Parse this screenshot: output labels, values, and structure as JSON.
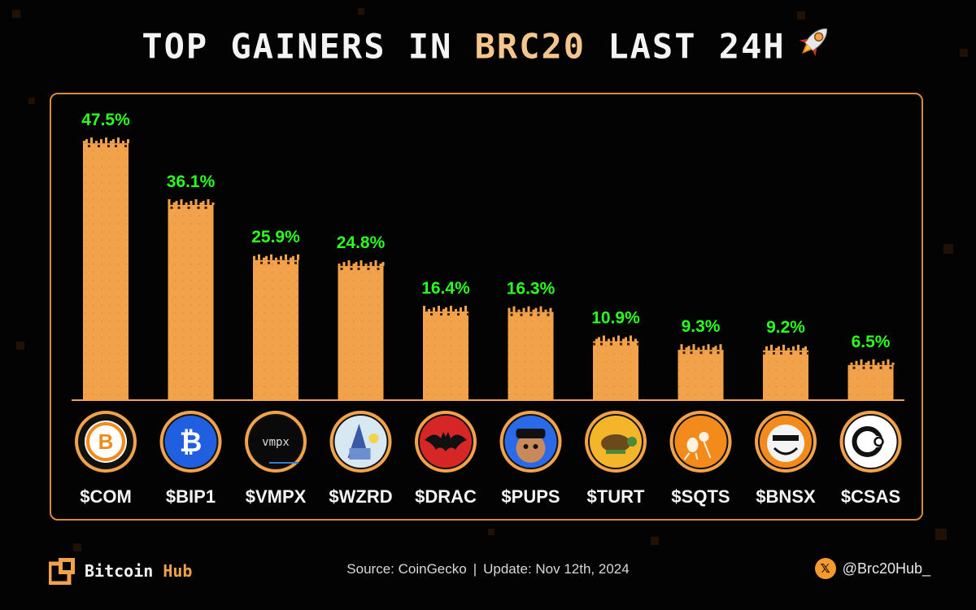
{
  "header": {
    "title_part1": "TOP GAINERS IN ",
    "title_highlight": "BRC20",
    "title_part2": " LAST 24H",
    "rocket_icon": "rocket-icon"
  },
  "chart_data": {
    "type": "bar",
    "categories": [
      "$COM",
      "$BIP1",
      "$VMPX",
      "$WZRD",
      "$DRAC",
      "$PUPS",
      "$TURT",
      "$SQTS",
      "$BNSX",
      "$CSAS"
    ],
    "values": [
      47.5,
      36.1,
      25.9,
      24.8,
      16.4,
      16.3,
      10.9,
      9.3,
      9.2,
      6.5
    ],
    "value_labels": [
      "47.5%",
      "36.1%",
      "25.9%",
      "24.8%",
      "16.4%",
      "16.3%",
      "10.9%",
      "9.3%",
      "9.2%",
      "6.5%"
    ],
    "unit": "%",
    "title": "TOP GAINERS IN BRC20 LAST 24H",
    "xlabel": "",
    "ylabel": "",
    "ylim": [
      0,
      50
    ],
    "grid": false,
    "bar_color": "#f2a24a",
    "label_color": "#2bff1e",
    "token_icons": [
      "com-b5-logo-icon",
      "bitcoin-b-icon",
      "vmpx-logo-icon",
      "wizard-art-icon",
      "bat-icon",
      "pups-monkey-icon",
      "turtle-icon",
      "ant-icon",
      "troll-face-icon",
      "csas-logo-icon"
    ]
  },
  "footer": {
    "brand_part1": "Bitcoin",
    "brand_part2": " Hub",
    "source_text": "Source: CoinGecko",
    "separator": "|",
    "update_text": "Update: Nov 12th, 2024",
    "social_handle": "@Brc20Hub_",
    "social_icon": "x-icon"
  },
  "colors": {
    "background": "#030303",
    "accent": "#f2a24a",
    "frame": "#d98a39",
    "highlight": "#f5c58e",
    "positive": "#2bff1e"
  }
}
